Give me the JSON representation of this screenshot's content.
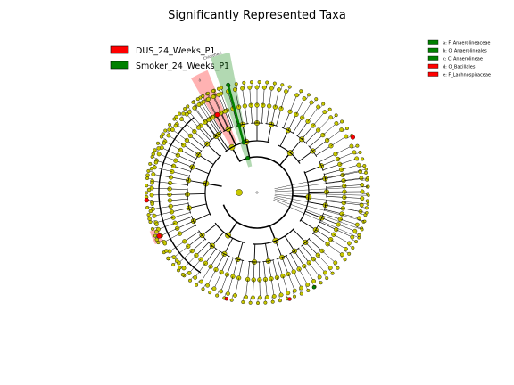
{
  "chart_data": {
    "type": "cladogram",
    "title": "Significantly Represented Taxa",
    "legend_position": "top-left",
    "key_position": "top-right",
    "classes": [
      {
        "name": "DUS_24_Weeks_P1",
        "color": "#ff0000"
      },
      {
        "name": "Smoker_24_Weeks_P1",
        "color": "#008000"
      }
    ],
    "taxa_key": [
      {
        "letter": "a",
        "label": "a: F_Anaerolineaceae",
        "class": "Smoker_24_Weeks_P1",
        "color": "#008000"
      },
      {
        "letter": "b",
        "label": "b: O_Anaerolineales",
        "class": "Smoker_24_Weeks_P1",
        "color": "#008000"
      },
      {
        "letter": "c",
        "label": "c: C_Anaerolineae",
        "class": "Smoker_24_Weeks_P1",
        "color": "#008000"
      },
      {
        "letter": "d",
        "label": "d: O_Bacillales",
        "class": "DUS_24_Weeks_P1",
        "color": "#ff0000"
      },
      {
        "letter": "e",
        "label": "e: F_Lachnospiraceae",
        "class": "DUS_24_Weeks_P1",
        "color": "#ff0000"
      }
    ],
    "clade_labels": [
      {
        "text": "a",
        "class": "Smoker_24_Weeks_P1"
      },
      {
        "text": "d",
        "class": "DUS_24_Weeks_P1"
      },
      {
        "text": "e",
        "class": "DUS_24_Weeks_P1"
      },
      {
        "text": "Chloroflexi",
        "class": "Smoker_24_Weeks_P1"
      }
    ],
    "colors": {
      "node": "#c8c800",
      "node_stroke": "#666600",
      "branch": "#000000"
    }
  }
}
